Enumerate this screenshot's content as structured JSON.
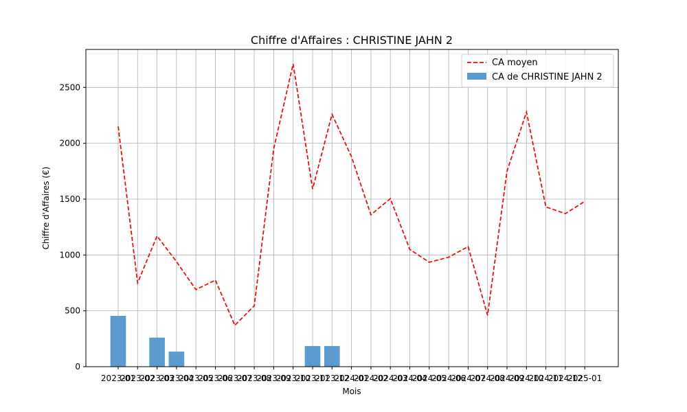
{
  "chart_data": {
    "type": "bar",
    "title": "Chiffre d'Affaires : CHRISTINE JAHN 2",
    "xlabel": "Mois",
    "ylabel": "Chiffre d'Affaires (€)",
    "ylim": [
      0,
      2840
    ],
    "yticks": [
      0,
      500,
      1000,
      1500,
      2000,
      2500
    ],
    "grid": true,
    "legend_position": "top-right",
    "categories": [
      "2023-01",
      "2023-02",
      "2023-03",
      "2023-04",
      "2023-05",
      "2023-06",
      "2023-07",
      "2023-08",
      "2023-09",
      "2023-10",
      "2023-11",
      "2023-12",
      "2024-01",
      "2024-02",
      "2024-03",
      "2024-04",
      "2024-05",
      "2024-06",
      "2024-07",
      "2024-08",
      "2024-09",
      "2024-10",
      "2024-11",
      "2024-12",
      "2025-01"
    ],
    "series": [
      {
        "name": "CA moyen",
        "kind": "line",
        "style": "dashed",
        "color": "#ff0000",
        "values": [
          2150,
          750,
          1170,
          940,
          690,
          775,
          370,
          545,
          1950,
          2710,
          1590,
          2260,
          1880,
          1360,
          1505,
          1050,
          935,
          980,
          1075,
          460,
          1750,
          2280,
          1430,
          1370,
          1480
        ]
      },
      {
        "name": "CA de CHRISTINE JAHN 2",
        "kind": "bar",
        "color": "#5b9bd0",
        "values": [
          455,
          0,
          260,
          135,
          0,
          0,
          0,
          0,
          0,
          0,
          185,
          185,
          0,
          0,
          0,
          0,
          0,
          0,
          0,
          0,
          0,
          0,
          0,
          0,
          0
        ]
      }
    ]
  }
}
